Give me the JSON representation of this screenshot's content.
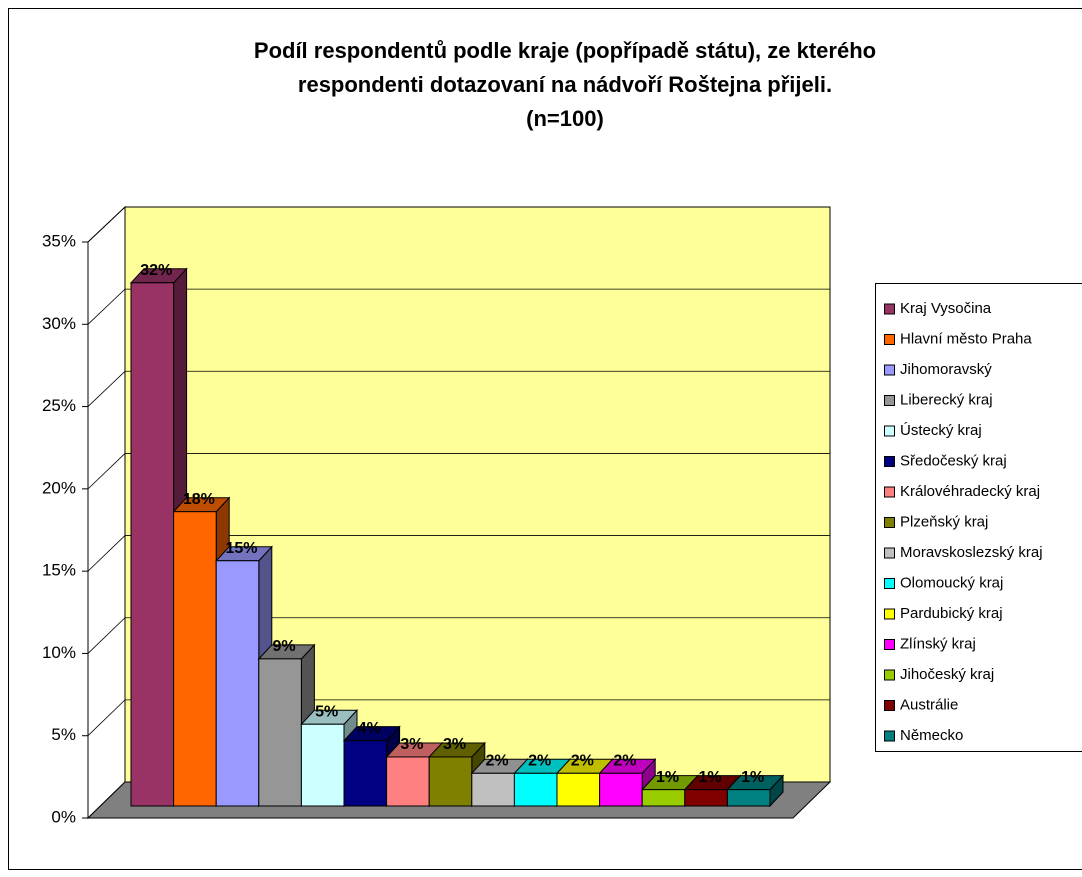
{
  "chart_data": {
    "type": "bar",
    "title": [
      "Podíl respondentů podle kraje (popřípadě státu), ze kterého",
      "respondenti dotazovaní na nádvoří Roštejna přijeli.",
      "(n=100)"
    ],
    "ylim": [
      0,
      35
    ],
    "yticks": [
      {
        "value": 0,
        "label": "0%"
      },
      {
        "value": 5,
        "label": "5%"
      },
      {
        "value": 10,
        "label": "10%"
      },
      {
        "value": 15,
        "label": "15%"
      },
      {
        "value": 20,
        "label": "20%"
      },
      {
        "value": 25,
        "label": "25%"
      },
      {
        "value": 30,
        "label": "30%"
      },
      {
        "value": 35,
        "label": "35%"
      }
    ],
    "grid": true,
    "legend": "right",
    "series": [
      {
        "name": "Kraj Vysočina",
        "color": "#993366",
        "values": [
          32
        ],
        "value_labels": [
          "32%"
        ]
      },
      {
        "name": "Hlavní město Praha",
        "color": "#ff6600",
        "values": [
          18
        ],
        "value_labels": [
          "18%"
        ]
      },
      {
        "name": "Jihomoravský",
        "color": "#9999ff",
        "values": [
          15
        ],
        "value_labels": [
          "15%"
        ]
      },
      {
        "name": "Liberecký kraj",
        "color": "#969696",
        "values": [
          9
        ],
        "value_labels": [
          "9%"
        ]
      },
      {
        "name": "Ústecký kraj",
        "color": "#ccffff",
        "values": [
          5
        ],
        "value_labels": [
          "5%"
        ]
      },
      {
        "name": "Sředočeský kraj",
        "color": "#000080",
        "values": [
          4
        ],
        "value_labels": [
          "4%"
        ]
      },
      {
        "name": "Královéhradecký kraj",
        "color": "#ff8080",
        "values": [
          3
        ],
        "value_labels": [
          "3%"
        ]
      },
      {
        "name": "Plzeňský kraj",
        "color": "#808000",
        "values": [
          3
        ],
        "value_labels": [
          "3%"
        ]
      },
      {
        "name": "Moravskoslezský kraj",
        "color": "#c0c0c0",
        "values": [
          2
        ],
        "value_labels": [
          "2%"
        ]
      },
      {
        "name": "Olomoucký kraj",
        "color": "#00ffff",
        "values": [
          2
        ],
        "value_labels": [
          "2%"
        ]
      },
      {
        "name": "Pardubický kraj",
        "color": "#ffff00",
        "values": [
          2
        ],
        "value_labels": [
          "2%"
        ]
      },
      {
        "name": "Zlínský kraj",
        "color": "#ff00ff",
        "values": [
          2
        ],
        "value_labels": [
          "2%"
        ]
      },
      {
        "name": "Jihočeský kraj",
        "color": "#99cc00",
        "values": [
          1
        ],
        "value_labels": [
          "1%"
        ]
      },
      {
        "name": "Austrálie",
        "color": "#800000",
        "values": [
          1
        ],
        "value_labels": [
          "1%"
        ]
      },
      {
        "name": "Německo",
        "color": "#008080",
        "values": [
          1
        ],
        "value_labels": [
          "1%"
        ]
      }
    ]
  }
}
